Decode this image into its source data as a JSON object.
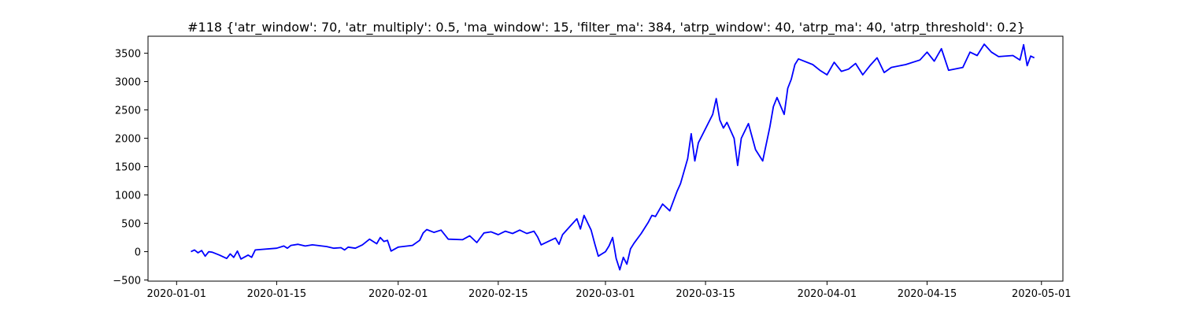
{
  "chart_data": {
    "type": "line",
    "title": "#118 {'atr_window': 70, 'atr_multiply': 0.5, 'ma_window': 15, 'filter_ma': 384, 'atrp_window': 40, 'atrp_ma': 40, 'atrp_threshold': 0.2}",
    "xlabel": "",
    "ylabel": "",
    "xlim": [
      "2019-12-28",
      "2020-05-04"
    ],
    "ylim": [
      -520,
      3800
    ],
    "grid": false,
    "legend": "none",
    "x_ticks": [
      {
        "date": "2020-01-01",
        "label": "2020-01-01"
      },
      {
        "date": "2020-01-15",
        "label": "2020-01-15"
      },
      {
        "date": "2020-02-01",
        "label": "2020-02-01"
      },
      {
        "date": "2020-02-15",
        "label": "2020-02-15"
      },
      {
        "date": "2020-03-01",
        "label": "2020-03-01"
      },
      {
        "date": "2020-03-15",
        "label": "2020-03-15"
      },
      {
        "date": "2020-04-01",
        "label": "2020-04-01"
      },
      {
        "date": "2020-04-15",
        "label": "2020-04-15"
      },
      {
        "date": "2020-05-01",
        "label": "2020-05-01"
      }
    ],
    "y_ticks": [
      {
        "value": -500,
        "label": "−500"
      },
      {
        "value": 0,
        "label": "0"
      },
      {
        "value": 500,
        "label": "500"
      },
      {
        "value": 1000,
        "label": "1000"
      },
      {
        "value": 1500,
        "label": "1500"
      },
      {
        "value": 2000,
        "label": "2000"
      },
      {
        "value": 2500,
        "label": "2500"
      },
      {
        "value": 3000,
        "label": "3000"
      },
      {
        "value": 3500,
        "label": "3500"
      }
    ],
    "series": [
      {
        "color": "#0000ff",
        "points": [
          [
            "2020-01-03",
            0
          ],
          [
            "2020-01-03 12:00",
            30
          ],
          [
            "2020-01-04",
            -20
          ],
          [
            "2020-01-04 12:00",
            20
          ],
          [
            "2020-01-05",
            -80
          ],
          [
            "2020-01-05 12:00",
            0
          ],
          [
            "2020-01-06",
            -10
          ],
          [
            "2020-01-07",
            -60
          ],
          [
            "2020-01-08",
            -120
          ],
          [
            "2020-01-08 12:00",
            -40
          ],
          [
            "2020-01-09",
            -100
          ],
          [
            "2020-01-09 12:00",
            10
          ],
          [
            "2020-01-10",
            -130
          ],
          [
            "2020-01-11",
            -60
          ],
          [
            "2020-01-11 12:00",
            -100
          ],
          [
            "2020-01-12",
            30
          ],
          [
            "2020-01-15",
            60
          ],
          [
            "2020-01-16",
            100
          ],
          [
            "2020-01-16 12:00",
            60
          ],
          [
            "2020-01-17",
            110
          ],
          [
            "2020-01-18",
            130
          ],
          [
            "2020-01-19",
            100
          ],
          [
            "2020-01-20",
            120
          ],
          [
            "2020-01-22",
            90
          ],
          [
            "2020-01-23",
            60
          ],
          [
            "2020-01-24",
            70
          ],
          [
            "2020-01-24 12:00",
            30
          ],
          [
            "2020-01-25",
            80
          ],
          [
            "2020-01-26",
            60
          ],
          [
            "2020-01-27",
            120
          ],
          [
            "2020-01-28",
            220
          ],
          [
            "2020-01-29",
            140
          ],
          [
            "2020-01-29 12:00",
            250
          ],
          [
            "2020-01-30",
            180
          ],
          [
            "2020-01-30 12:00",
            200
          ],
          [
            "2020-01-31",
            10
          ],
          [
            "2020-02-01",
            80
          ],
          [
            "2020-02-03",
            110
          ],
          [
            "2020-02-04",
            200
          ],
          [
            "2020-02-04 12:00",
            330
          ],
          [
            "2020-02-05",
            390
          ],
          [
            "2020-02-06",
            340
          ],
          [
            "2020-02-07",
            380
          ],
          [
            "2020-02-08",
            220
          ],
          [
            "2020-02-10",
            210
          ],
          [
            "2020-02-11",
            280
          ],
          [
            "2020-02-12",
            160
          ],
          [
            "2020-02-13",
            330
          ],
          [
            "2020-02-14",
            350
          ],
          [
            "2020-02-15",
            300
          ],
          [
            "2020-02-16",
            360
          ],
          [
            "2020-02-17",
            320
          ],
          [
            "2020-02-18",
            380
          ],
          [
            "2020-02-19",
            320
          ],
          [
            "2020-02-20",
            360
          ],
          [
            "2020-02-20 12:00",
            260
          ],
          [
            "2020-02-21",
            120
          ],
          [
            "2020-02-22",
            180
          ],
          [
            "2020-02-23",
            240
          ],
          [
            "2020-02-23 12:00",
            130
          ],
          [
            "2020-02-24",
            300
          ],
          [
            "2020-02-25",
            440
          ],
          [
            "2020-02-26",
            580
          ],
          [
            "2020-02-26 12:00",
            400
          ],
          [
            "2020-02-27",
            640
          ],
          [
            "2020-02-28",
            380
          ],
          [
            "2020-02-28 12:00",
            140
          ],
          [
            "2020-02-29",
            -80
          ],
          [
            "2020-03-01",
            0
          ],
          [
            "2020-03-01 12:00",
            100
          ],
          [
            "2020-03-02",
            250
          ],
          [
            "2020-03-02 12:00",
            -120
          ],
          [
            "2020-03-03",
            -320
          ],
          [
            "2020-03-03 12:00",
            -100
          ],
          [
            "2020-03-04",
            -220
          ],
          [
            "2020-03-04 12:00",
            50
          ],
          [
            "2020-03-05",
            150
          ],
          [
            "2020-03-06",
            320
          ],
          [
            "2020-03-07",
            520
          ],
          [
            "2020-03-07 12:00",
            640
          ],
          [
            "2020-03-08",
            620
          ],
          [
            "2020-03-09",
            840
          ],
          [
            "2020-03-10",
            720
          ],
          [
            "2020-03-11",
            1060
          ],
          [
            "2020-03-11 12:00",
            1200
          ],
          [
            "2020-03-12",
            1420
          ],
          [
            "2020-03-12 12:00",
            1640
          ],
          [
            "2020-03-13",
            2080
          ],
          [
            "2020-03-13 12:00",
            1600
          ],
          [
            "2020-03-14",
            1920
          ],
          [
            "2020-03-16",
            2420
          ],
          [
            "2020-03-16 12:00",
            2700
          ],
          [
            "2020-03-17",
            2320
          ],
          [
            "2020-03-17 12:00",
            2180
          ],
          [
            "2020-03-18",
            2280
          ],
          [
            "2020-03-19",
            2000
          ],
          [
            "2020-03-19 12:00",
            1520
          ],
          [
            "2020-03-20",
            2000
          ],
          [
            "2020-03-21",
            2260
          ],
          [
            "2020-03-22",
            1800
          ],
          [
            "2020-03-23",
            1600
          ],
          [
            "2020-03-24",
            2200
          ],
          [
            "2020-03-24 12:00",
            2560
          ],
          [
            "2020-03-25",
            2720
          ],
          [
            "2020-03-26",
            2420
          ],
          [
            "2020-03-26 12:00",
            2880
          ],
          [
            "2020-03-27",
            3040
          ],
          [
            "2020-03-27 12:00",
            3300
          ],
          [
            "2020-03-28",
            3400
          ],
          [
            "2020-03-30",
            3300
          ],
          [
            "2020-03-31",
            3200
          ],
          [
            "2020-04-01",
            3120
          ],
          [
            "2020-04-02",
            3340
          ],
          [
            "2020-04-03",
            3180
          ],
          [
            "2020-04-04",
            3220
          ],
          [
            "2020-04-05",
            3320
          ],
          [
            "2020-04-06",
            3120
          ],
          [
            "2020-04-07",
            3280
          ],
          [
            "2020-04-08",
            3420
          ],
          [
            "2020-04-09",
            3160
          ],
          [
            "2020-04-10",
            3250
          ],
          [
            "2020-04-12",
            3300
          ],
          [
            "2020-04-14",
            3380
          ],
          [
            "2020-04-15",
            3520
          ],
          [
            "2020-04-16",
            3360
          ],
          [
            "2020-04-17",
            3580
          ],
          [
            "2020-04-18",
            3200
          ],
          [
            "2020-04-20",
            3250
          ],
          [
            "2020-04-21",
            3520
          ],
          [
            "2020-04-22",
            3460
          ],
          [
            "2020-04-23",
            3660
          ],
          [
            "2020-04-24",
            3520
          ],
          [
            "2020-04-25",
            3440
          ],
          [
            "2020-04-27",
            3460
          ],
          [
            "2020-04-28",
            3380
          ],
          [
            "2020-04-28 12:00",
            3650
          ],
          [
            "2020-04-29",
            3280
          ],
          [
            "2020-04-29 12:00",
            3450
          ],
          [
            "2020-04-30",
            3420
          ]
        ]
      }
    ]
  }
}
